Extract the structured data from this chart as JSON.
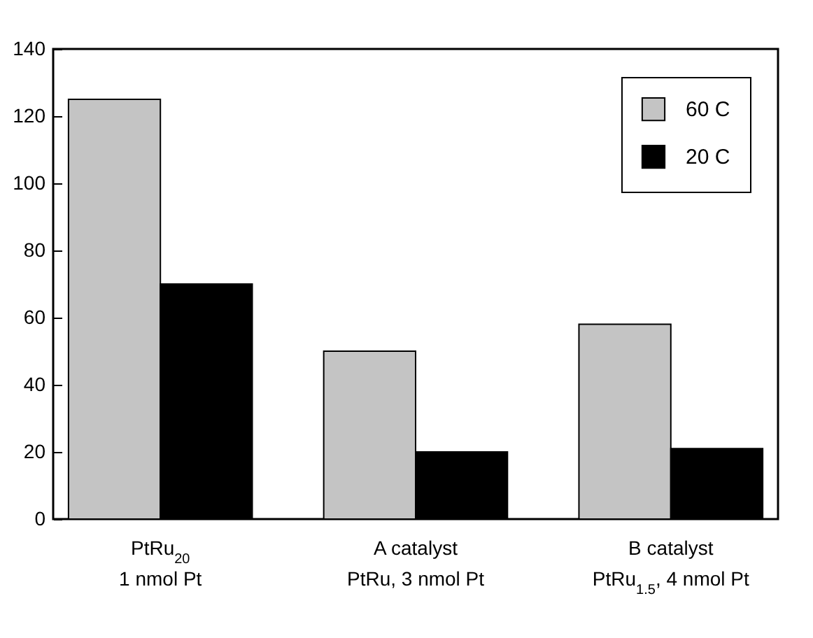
{
  "chart_data": {
    "type": "bar",
    "categories": [
      "PtRu$_{20}$\n1 nmol Pt",
      "A catalyst\nPtRu, 3 nmol Pt",
      "B catalyst\nPtRu$_{1.5}$, 4 nmol Pt"
    ],
    "series": [
      {
        "name": "60 C",
        "color": "#c4c4c4",
        "values": [
          125,
          50,
          58
        ]
      },
      {
        "name": "20 C",
        "color": "#000000",
        "values": [
          70,
          20,
          21
        ]
      }
    ],
    "ylim": [
      0,
      140
    ],
    "yticks": [
      0,
      20,
      40,
      60,
      80,
      100,
      120,
      140
    ],
    "legend": "top right"
  }
}
